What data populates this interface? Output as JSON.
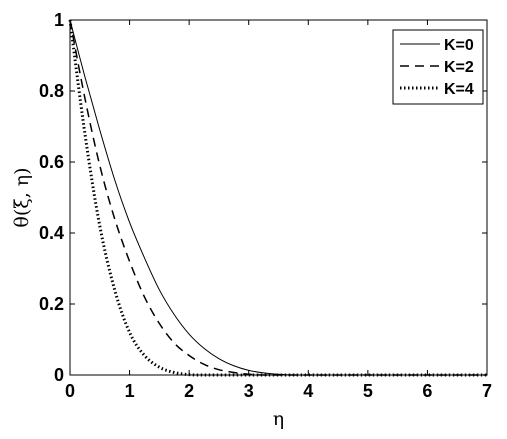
{
  "chart_data": {
    "type": "line",
    "title": "",
    "xlabel": "η",
    "ylabel": "θ(ξ, η)",
    "xlim": [
      0,
      7
    ],
    "ylim": [
      0,
      1
    ],
    "xticks": [
      0,
      1,
      2,
      3,
      4,
      5,
      6,
      7
    ],
    "yticks": [
      0,
      0.2,
      0.4,
      0.6,
      0.8,
      1
    ],
    "ytick_labels": [
      "0",
      "0.2",
      "0.4",
      "0.6",
      "0.8",
      "1"
    ],
    "grid": false,
    "legend": "top-right",
    "x": [
      0,
      0.25,
      0.5,
      0.75,
      1.0,
      1.25,
      1.5,
      1.75,
      2.0,
      2.25,
      2.5,
      2.75,
      3.0,
      3.25,
      3.5,
      3.75,
      4.0,
      5.0,
      6.0,
      7.0
    ],
    "series": [
      {
        "name": "K=0",
        "style": "solid",
        "values": [
          1.0,
          0.84,
          0.69,
          0.55,
          0.43,
          0.33,
          0.24,
          0.17,
          0.115,
          0.075,
          0.046,
          0.026,
          0.013,
          0.006,
          0.002,
          0.0,
          0.0,
          0.0,
          0.0,
          0.0
        ]
      },
      {
        "name": "K=2",
        "style": "dashed",
        "values": [
          1.0,
          0.78,
          0.59,
          0.44,
          0.32,
          0.22,
          0.145,
          0.09,
          0.055,
          0.03,
          0.015,
          0.007,
          0.002,
          0.0,
          0.0,
          0.0,
          0.0,
          0.0,
          0.0,
          0.0
        ]
      },
      {
        "name": "K=4",
        "style": "dotted",
        "values": [
          1.0,
          0.68,
          0.42,
          0.24,
          0.12,
          0.055,
          0.022,
          0.007,
          0.001,
          0.0,
          0.0,
          0.0,
          0.0,
          0.0,
          0.0,
          0.0,
          0.0,
          0.0,
          0.0,
          0.0
        ]
      }
    ]
  }
}
